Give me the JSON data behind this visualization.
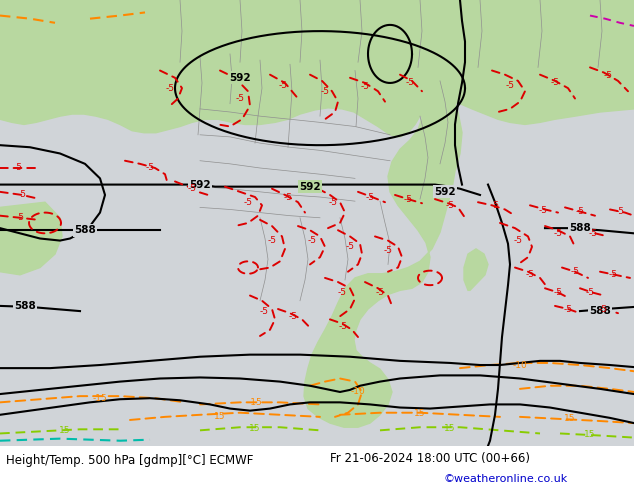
{
  "fig_width": 6.34,
  "fig_height": 4.9,
  "dpi": 100,
  "bottom_text_left": "Height/Temp. 500 hPa [gdmp][°C] ECMWF",
  "bottom_text_right": "Fr 21-06-2024 18:00 UTC (00+66)",
  "bottom_text_url": "©weatheronline.co.uk",
  "bottom_text_color": "#000000",
  "url_color": "#0000cc",
  "bottom_bg": "#ffffff",
  "ocean_color": "#d0d4d8",
  "land_color": "#b8d8a0",
  "border_color": "#909090",
  "black": "#000000",
  "red": "#dd0000",
  "orange": "#ff8800",
  "orange2": "#cc8800",
  "green_line": "#88cc00",
  "teal_line": "#00bbaa",
  "magenta_line": "#cc00aa"
}
